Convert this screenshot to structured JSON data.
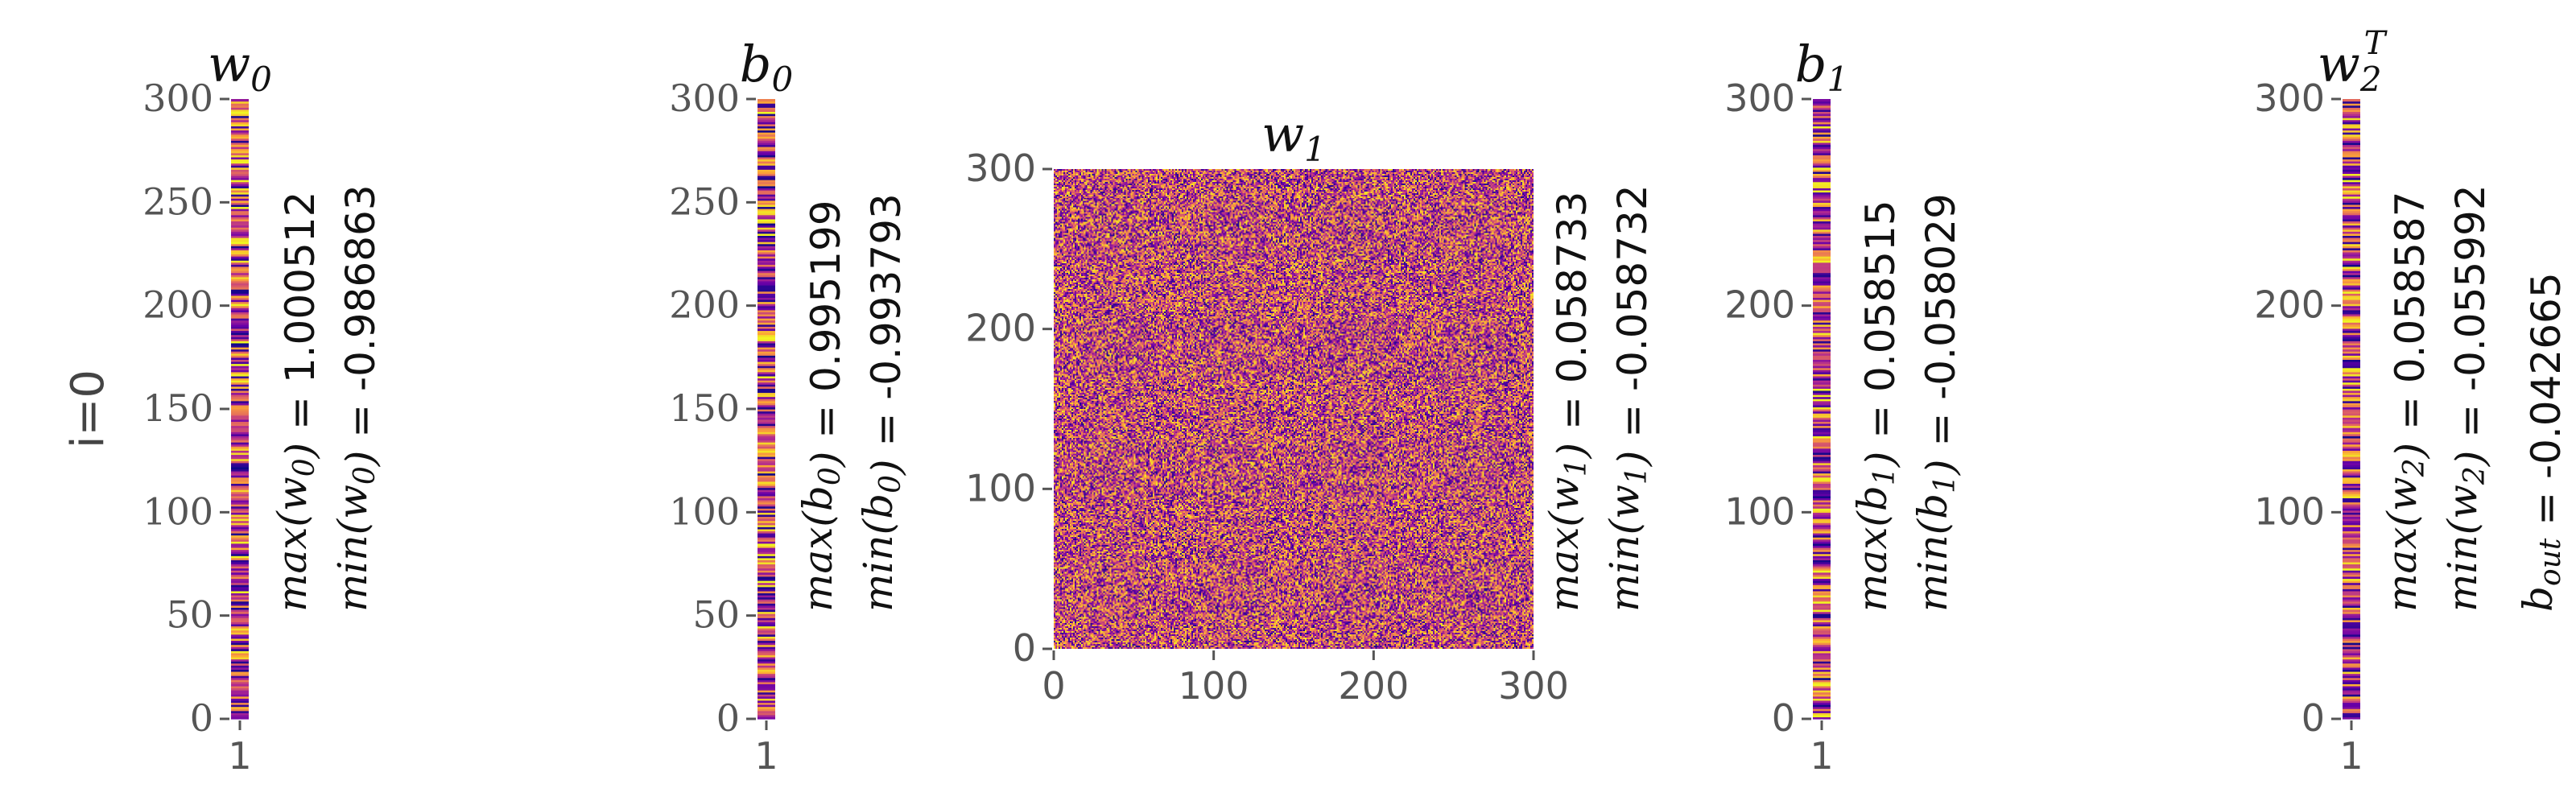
{
  "row_label": "i=0",
  "colormap": [
    "#0d0887",
    "#6a00a8",
    "#b12a90",
    "#e16462",
    "#fca636",
    "#f0f921"
  ],
  "chart_data": [
    {
      "type": "heatmap",
      "id": "w0",
      "title": "w_0",
      "stats": [
        "max(w_0) = 1.000512",
        "min(w_0) = -0.986863"
      ],
      "ylim": [
        0,
        300
      ],
      "yticks": [
        "0",
        "50",
        "100",
        "150",
        "200",
        "250",
        "300"
      ],
      "xticks": [
        "1"
      ],
      "rows": 300,
      "cols": 1,
      "value_range": [
        -0.986863,
        1.000512
      ],
      "seed": 11
    },
    {
      "type": "heatmap",
      "id": "b0",
      "title": "b_0",
      "stats": [
        "max(b_0) = 0.995199",
        "min(b_0) = -0.993793"
      ],
      "ylim": [
        0,
        300
      ],
      "yticks": [
        "0",
        "50",
        "100",
        "150",
        "200",
        "250",
        "300"
      ],
      "xticks": [
        "1"
      ],
      "rows": 300,
      "cols": 1,
      "value_range": [
        -0.993793,
        0.995199
      ],
      "seed": 23
    },
    {
      "type": "heatmap",
      "id": "w1",
      "title": "w_1",
      "stats": [
        "max(w_1) = 0.058733",
        "min(w_1) = -0.058732"
      ],
      "ylim": [
        0,
        300
      ],
      "xlim": [
        0,
        300
      ],
      "yticks": [
        "0",
        "100",
        "200",
        "300"
      ],
      "xticks": [
        "0",
        "100",
        "200",
        "300"
      ],
      "rows": 300,
      "cols": 300,
      "value_range": [
        -0.058732,
        0.058733
      ],
      "seed": 37
    },
    {
      "type": "heatmap",
      "id": "b1",
      "title": "b_1",
      "stats": [
        "max(b_1) = 0.058515",
        "min(b_1) = -0.058029"
      ],
      "ylim": [
        0,
        300
      ],
      "yticks": [
        "0",
        "100",
        "200",
        "300"
      ],
      "xticks": [
        "1"
      ],
      "rows": 300,
      "cols": 1,
      "value_range": [
        -0.058029,
        0.058515
      ],
      "seed": 41
    },
    {
      "type": "heatmap",
      "id": "w2",
      "title": "w_2^T",
      "stats": [
        "max(w_2) = 0.058587",
        "min(w_2) = -0.055992",
        "b_out = -0.042665"
      ],
      "ylim": [
        0,
        300
      ],
      "yticks": [
        "0",
        "100",
        "200",
        "300"
      ],
      "xticks": [
        "1"
      ],
      "rows": 300,
      "cols": 1,
      "value_range": [
        -0.055992,
        0.058587
      ],
      "seed": 53
    }
  ]
}
